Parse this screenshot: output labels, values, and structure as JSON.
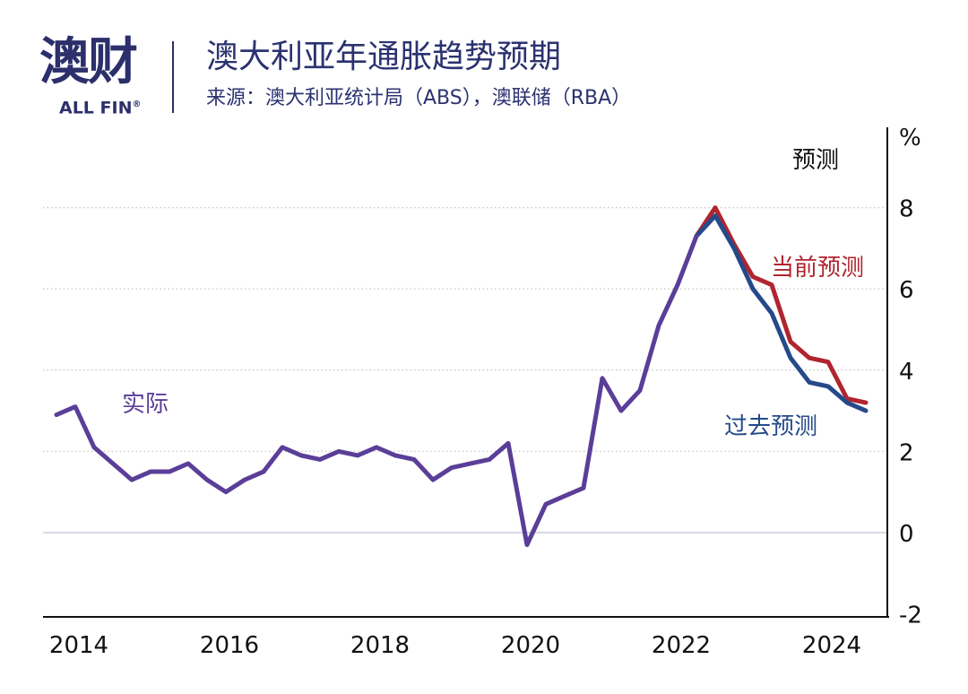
{
  "header": {
    "logo_cn": "澳财",
    "logo_en": "ALL FIN",
    "logo_reg": "®",
    "title": "澳大利亚年通胀趋势预期",
    "subtitle": "来源：澳大利亚统计局（ABS），澳联储（RBA）"
  },
  "chart_data": {
    "type": "line",
    "title": "澳大利亚年通胀趋势预期",
    "ylabel": "%",
    "ylim": [
      -2,
      9
    ],
    "yticks": [
      "8",
      "6",
      "4",
      "2",
      "0",
      "-2"
    ],
    "xticks": [
      "2014",
      "2016",
      "2018",
      "2020",
      "2022",
      "2024"
    ],
    "grid": "horizontal-dotted",
    "forecast_label": "预测",
    "series": [
      {
        "name": "实际",
        "color": "#5A3E98",
        "start": "2014Q1",
        "values": [
          2.9,
          3.1,
          2.1,
          1.7,
          1.3,
          1.5,
          1.5,
          1.7,
          1.3,
          1.0,
          1.3,
          1.5,
          2.1,
          1.9,
          1.8,
          2.0,
          1.9,
          2.1,
          1.9,
          1.8,
          1.3,
          1.6,
          1.7,
          1.8,
          2.2,
          -0.3,
          0.7,
          0.9,
          1.1,
          3.8,
          3.0,
          3.5,
          5.1,
          6.1,
          7.3
        ]
      },
      {
        "name": "当前预测",
        "color": "#B0252F",
        "start": "2022Q3",
        "values": [
          7.3,
          8.0,
          7.1,
          6.3,
          6.1,
          4.7,
          4.3,
          4.2,
          3.3,
          3.2
        ]
      },
      {
        "name": "过去预测",
        "color": "#254A8A",
        "start": "2022Q3",
        "values": [
          7.3,
          7.8,
          7.0,
          6.0,
          5.4,
          4.3,
          3.7,
          3.6,
          3.2,
          3.0
        ]
      }
    ]
  }
}
